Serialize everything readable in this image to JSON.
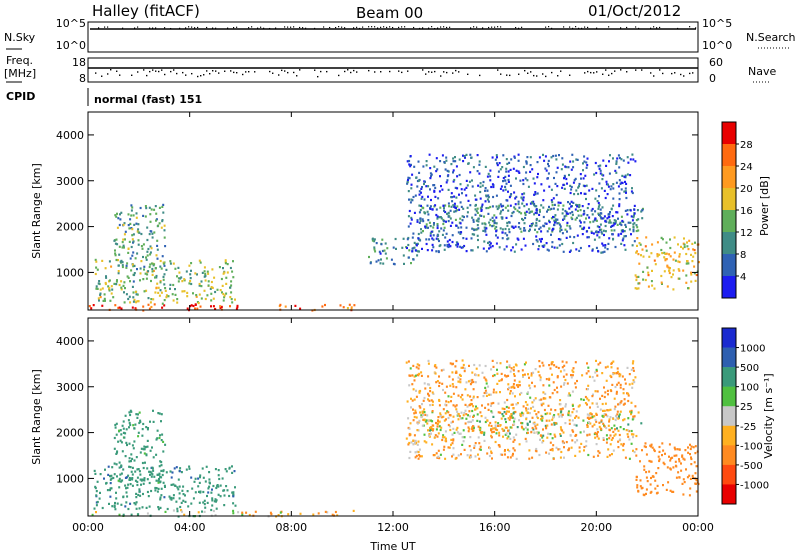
{
  "header": {
    "station": "Halley (fitACF)",
    "beam": "Beam 00",
    "date": "01/Oct/2012"
  },
  "strips": {
    "nsky_label": "N.Sky",
    "nsearch_label": "N.Search",
    "nsky_ticks": [
      "10^5",
      "10^0"
    ],
    "nsearch_ticks": [
      "10^5",
      "10^0"
    ],
    "freq_label_1": "Freq.",
    "freq_label_2": "[MHz]",
    "freq_ticks": [
      "18",
      "8"
    ],
    "nave_label": "Nave",
    "nave_ticks": [
      "60",
      "0"
    ],
    "cpid_label": "CPID",
    "cpid_value": "normal (fast) 151"
  },
  "colors": {
    "power_scale": [
      "#1c1cf0",
      "#2f62b4",
      "#3f8c86",
      "#5fae5a",
      "#e8c02a",
      "#ff9a20",
      "#ff6a10",
      "#e80000"
    ],
    "velocity_scale": [
      "#e80000",
      "#ff4a10",
      "#ff8a20",
      "#ffb020",
      "#c8c8c8",
      "#50c040",
      "#3a9a7a",
      "#2e5fb0",
      "#1a2ad0"
    ]
  },
  "chart_data": [
    {
      "type": "heatmap",
      "name": "power-panel",
      "ylabel": "Slant Range [km]",
      "xlabel": "Time UT",
      "x_ticks": [
        "00:00",
        "04:00",
        "08:00",
        "12:00",
        "16:00",
        "20:00",
        "00:00"
      ],
      "y_ticks": [
        "1000",
        "2000",
        "3000",
        "4000"
      ],
      "xlim_hours": [
        0,
        24
      ],
      "ylim_km": [
        180,
        4500
      ],
      "colorbar_label": "Power [dB]",
      "colorbar_ticks": [
        "4",
        "8",
        "12",
        "16",
        "20",
        "24",
        "28"
      ],
      "colorbar_range": [
        0,
        30
      ],
      "regions": [
        {
          "t0": 0.0,
          "t1": 6.0,
          "r0": 190,
          "r1": 330,
          "v": 27
        },
        {
          "t0": 0.2,
          "t1": 5.8,
          "r0": 330,
          "r1": 1300,
          "v": 14
        },
        {
          "t0": 1.0,
          "t1": 3.0,
          "r0": 800,
          "r1": 2500,
          "v": 11
        },
        {
          "t0": 7.0,
          "t1": 10.5,
          "r0": 190,
          "r1": 320,
          "v": 22
        },
        {
          "t0": 11.0,
          "t1": 13.0,
          "r0": 1200,
          "r1": 1800,
          "v": 8
        },
        {
          "t0": 13.0,
          "t1": 21.8,
          "r0": 1900,
          "r1": 2500,
          "v": 10
        },
        {
          "t0": 12.5,
          "t1": 21.5,
          "r0": 1450,
          "r1": 3600,
          "v": 5
        },
        {
          "t0": 21.5,
          "t1": 24.0,
          "r0": 650,
          "r1": 1800,
          "v": 18
        }
      ]
    },
    {
      "type": "heatmap",
      "name": "velocity-panel",
      "ylabel": "Slant Range [km]",
      "xlabel": "Time UT",
      "x_ticks": [
        "00:00",
        "04:00",
        "08:00",
        "12:00",
        "16:00",
        "20:00",
        "00:00"
      ],
      "y_ticks": [
        "1000",
        "2000",
        "3000",
        "4000"
      ],
      "xlim_hours": [
        0,
        24
      ],
      "ylim_km": [
        180,
        4500
      ],
      "colorbar_label": "Velocity [m s⁻¹]",
      "colorbar_ticks": [
        "1000",
        "500",
        "100",
        "25",
        "-25",
        "-100",
        "-500",
        "-1000"
      ],
      "regions": [
        {
          "t0": 0.0,
          "t1": 6.0,
          "r0": 190,
          "r1": 330,
          "v": 60
        },
        {
          "t0": 0.2,
          "t1": 5.8,
          "r0": 330,
          "r1": 1300,
          "v": 400
        },
        {
          "t0": 1.0,
          "t1": 3.0,
          "r0": 800,
          "r1": 2500,
          "v": 200
        },
        {
          "t0": 6.0,
          "t1": 10.5,
          "r0": 190,
          "r1": 320,
          "v": -80
        },
        {
          "t0": 13.0,
          "t1": 21.8,
          "r0": 1900,
          "r1": 2500,
          "v": 0
        },
        {
          "t0": 12.5,
          "t1": 21.5,
          "r0": 1450,
          "r1": 3600,
          "v": -90
        },
        {
          "t0": 21.5,
          "t1": 24.0,
          "r0": 650,
          "r1": 1800,
          "v": -300
        }
      ]
    }
  ]
}
